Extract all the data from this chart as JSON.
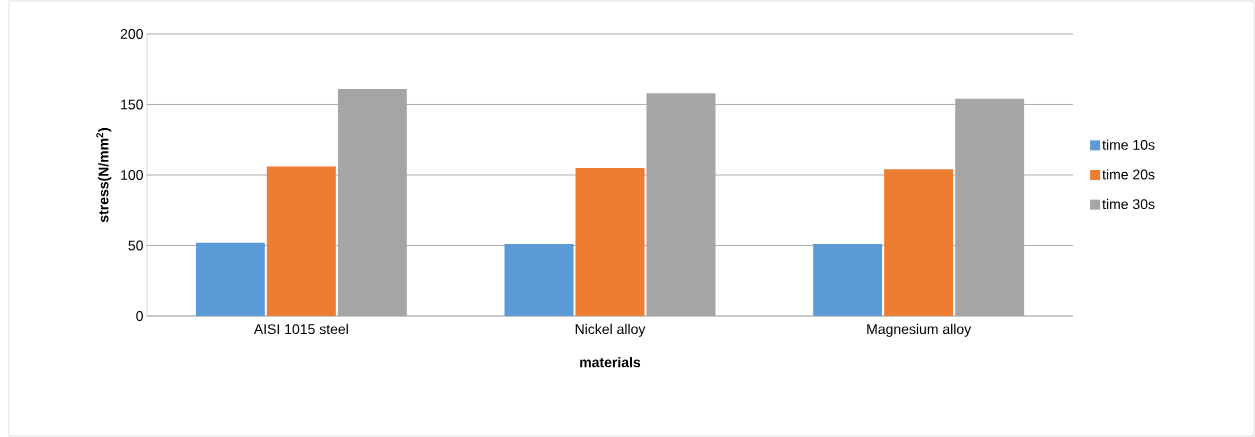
{
  "chart_data": {
    "type": "bar",
    "xlabel": "materials",
    "ylabel": "stress(N/mm$^{2}$)",
    "categories": [
      "AISI 1015 steel",
      "Nickel alloy",
      "Magnesium alloy"
    ],
    "series": [
      {
        "name": "time 10s",
        "color": "#5b9bd5",
        "values": [
          52,
          51,
          51
        ]
      },
      {
        "name": "time 20s",
        "color": "#ed7d31",
        "values": [
          106,
          105,
          104
        ]
      },
      {
        "name": "time 30s",
        "color": "#a5a5a5",
        "values": [
          161,
          158,
          154
        ]
      }
    ],
    "ylim": [
      0,
      200
    ],
    "yticks": [
      0,
      50,
      100,
      150,
      200
    ],
    "grid": "y",
    "legend": "right"
  }
}
